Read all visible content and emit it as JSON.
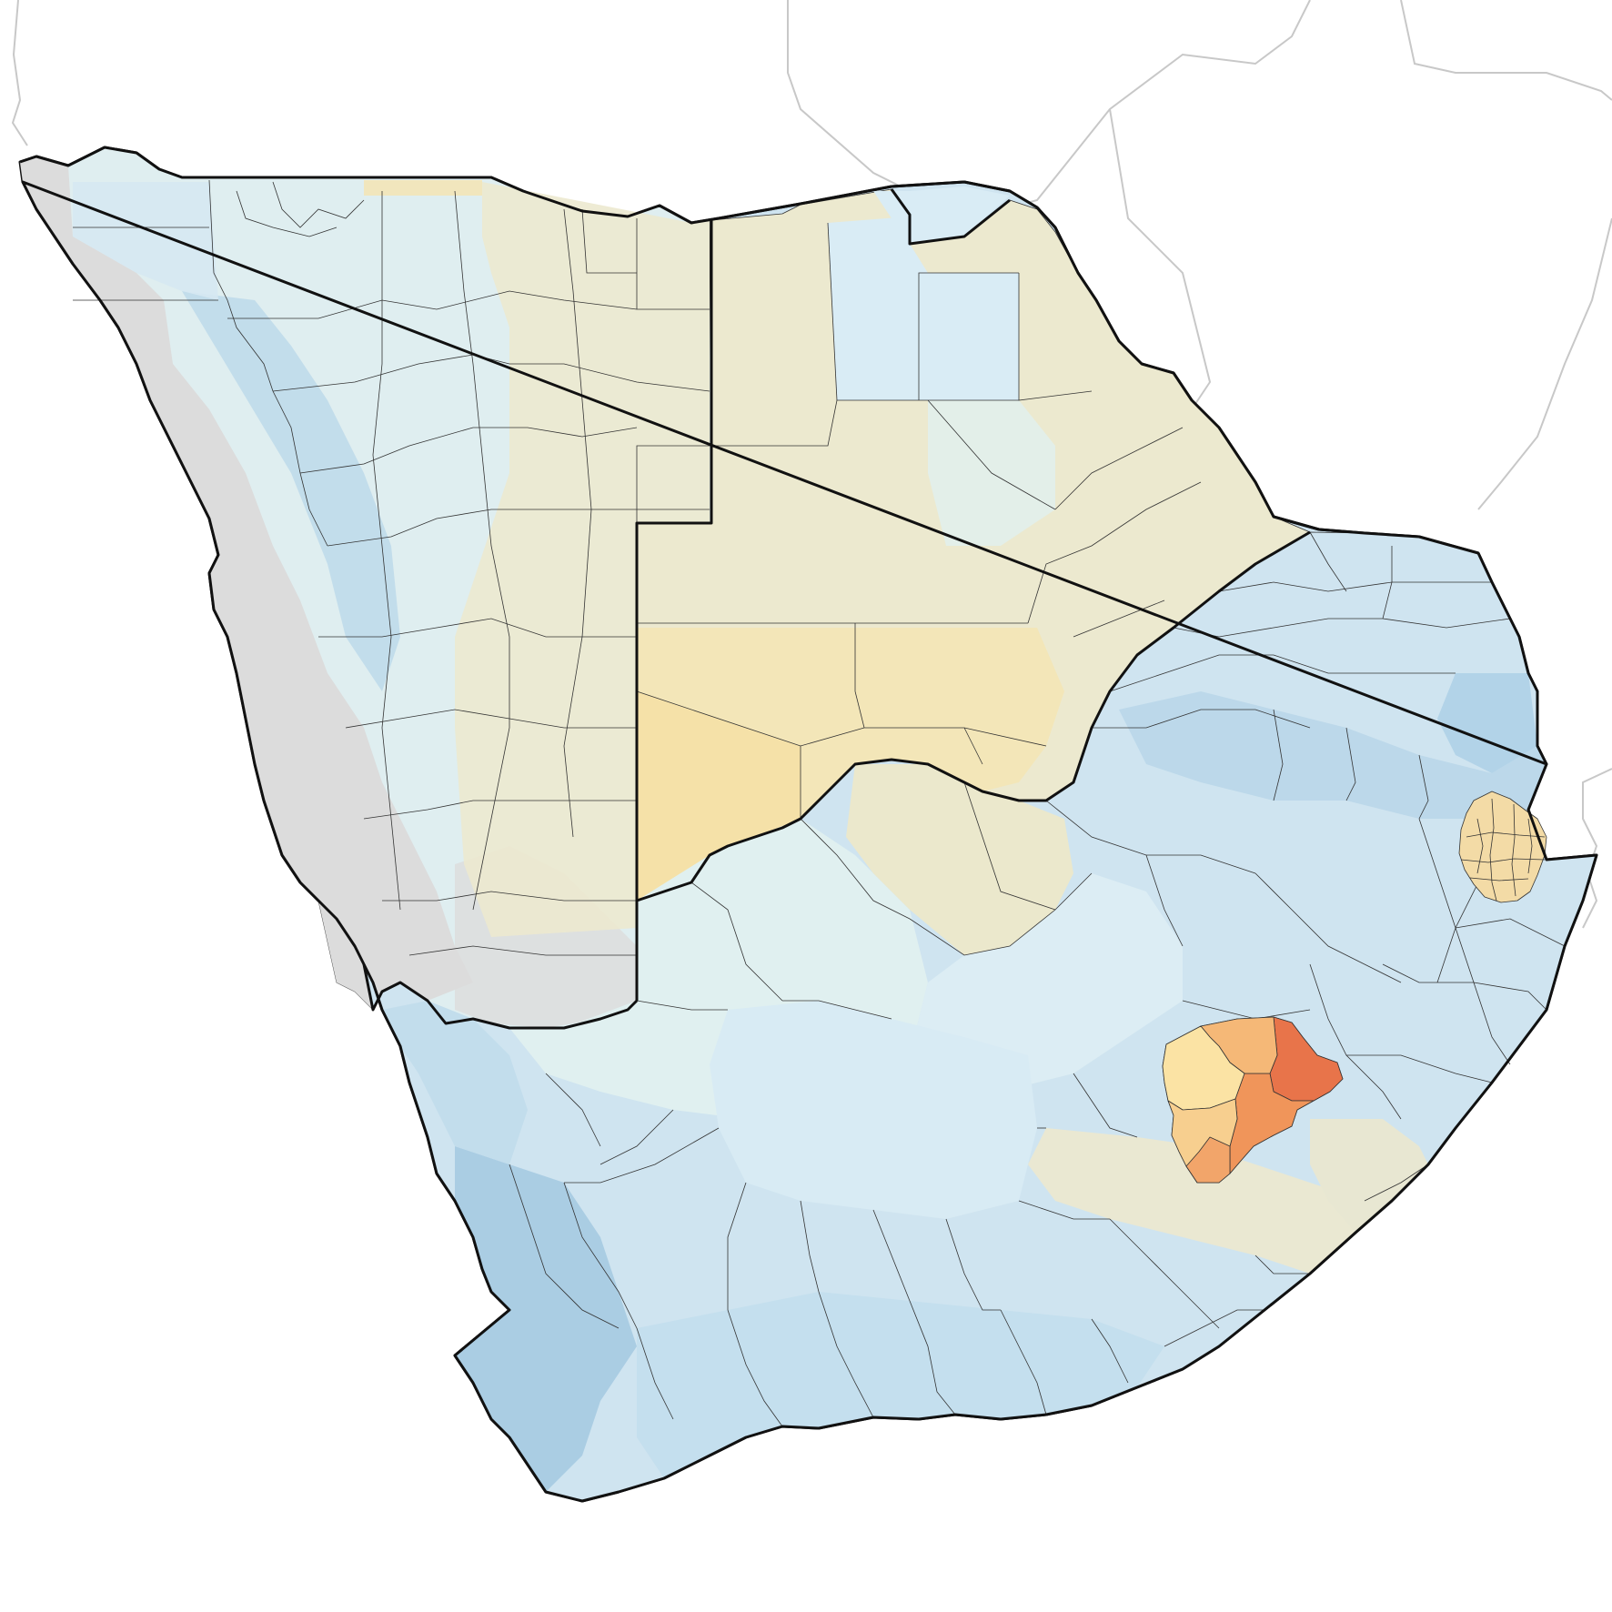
{
  "map": {
    "type": "choropleth",
    "scale_colors": {
      "very_high": "#e8744a",
      "high": "#f2a05e",
      "mid_high": "#f7c98a",
      "mid": "#f5e3b0",
      "neutral_warm": "#ece9cf",
      "neutral_cool": "#e3efe9",
      "low": "#dceef5",
      "mid_low": "#cfe4f0",
      "lower": "#bdd9ea",
      "lowest": "#a9cde4",
      "no_data": "#dcdcdc",
      "border": "#111111",
      "neighbors": "#c8c8c8"
    },
    "countries": [
      {
        "id": "namibia",
        "fill": "#dfeef0"
      },
      {
        "id": "botswana",
        "fill": "#ece9cf"
      },
      {
        "id": "zimbabwe",
        "fill": "#d9ecf5"
      },
      {
        "id": "south-africa",
        "fill": "#cfe4f0"
      },
      {
        "id": "lesotho",
        "fill": "#f2a05e"
      },
      {
        "id": "eswatini",
        "fill": "#f5d9a0"
      }
    ]
  }
}
